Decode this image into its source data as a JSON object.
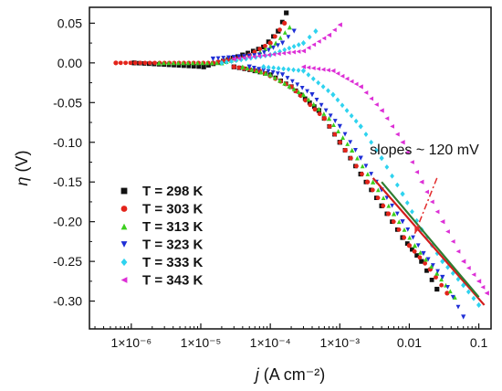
{
  "chart_data": {
    "type": "scatter",
    "title": "",
    "xlabel": "j (A cm⁻²)",
    "xlabel_var": "j",
    "xlabel_unit": " (A cm⁻²)",
    "ylabel": "η (V)",
    "ylabel_var": "η",
    "ylabel_unit": " (V)",
    "x_scale": "log",
    "xlim": [
      2.5e-07,
      0.15
    ],
    "ylim": [
      -0.335,
      0.07
    ],
    "x_ticks": [
      {
        "value": 1e-06,
        "label": "1×10⁻⁶"
      },
      {
        "value": 1e-05,
        "label": "1×10⁻⁵"
      },
      {
        "value": 0.0001,
        "label": "1×10⁻⁴"
      },
      {
        "value": 0.001,
        "label": "1×10⁻³"
      },
      {
        "value": 0.01,
        "label": "0.01"
      },
      {
        "value": 0.1,
        "label": "0.1"
      }
    ],
    "y_ticks": [
      {
        "value": 0.05,
        "label": "0.05"
      },
      {
        "value": 0.0,
        "label": "0.00"
      },
      {
        "value": -0.05,
        "label": "-0.05"
      },
      {
        "value": -0.1,
        "label": "-0.10"
      },
      {
        "value": -0.15,
        "label": "-0.15"
      },
      {
        "value": -0.2,
        "label": "-0.20"
      },
      {
        "value": -0.25,
        "label": "-0.25"
      },
      {
        "value": -0.3,
        "label": "-0.30"
      }
    ],
    "grid": false,
    "legend_position": "bottom-left",
    "series": [
      {
        "name": "T = 298 K",
        "color": "#111111",
        "marker": "square",
        "points": [
          [
            1.1e-06,
            0.0
          ],
          [
            1.1e-05,
            -0.005
          ],
          [
            4e-05,
            0.01
          ],
          [
            8e-05,
            0.02
          ],
          [
            0.00013,
            0.04
          ],
          [
            0.00017,
            0.063
          ],
          [
            3e-05,
            -0.005
          ],
          [
            6e-05,
            -0.01
          ],
          [
            0.0001,
            -0.015
          ],
          [
            0.0002,
            -0.03
          ],
          [
            0.0005,
            -0.06
          ],
          [
            0.001,
            -0.1
          ],
          [
            0.002,
            -0.14
          ],
          [
            0.004,
            -0.18
          ],
          [
            0.008,
            -0.22
          ],
          [
            0.015,
            -0.25
          ],
          [
            0.025,
            -0.285
          ]
        ]
      },
      {
        "name": "T = 303 K",
        "color": "#e3241b",
        "marker": "circle",
        "points": [
          [
            6e-07,
            0.0
          ],
          [
            1.5e-05,
            0.0
          ],
          [
            5e-05,
            0.01
          ],
          [
            0.0001,
            0.025
          ],
          [
            0.00016,
            0.05
          ],
          [
            3e-05,
            -0.005
          ],
          [
            7e-05,
            -0.01
          ],
          [
            0.0002,
            -0.03
          ],
          [
            0.0006,
            -0.07
          ],
          [
            0.0012,
            -0.11
          ],
          [
            0.0025,
            -0.15
          ],
          [
            0.005,
            -0.19
          ],
          [
            0.01,
            -0.23
          ],
          [
            0.02,
            -0.26
          ],
          [
            0.035,
            -0.29
          ]
        ]
      },
      {
        "name": "T = 313 K",
        "color": "#3ccf1e",
        "marker": "triangle-up",
        "points": [
          [
            2.5e-06,
            0.0
          ],
          [
            2e-05,
            0.0
          ],
          [
            6e-05,
            0.01
          ],
          [
            0.00012,
            0.025
          ],
          [
            0.00019,
            0.045
          ],
          [
            4e-05,
            -0.005
          ],
          [
            0.0001,
            -0.015
          ],
          [
            0.0003,
            -0.04
          ],
          [
            0.0007,
            -0.07
          ],
          [
            0.0015,
            -0.11
          ],
          [
            0.003,
            -0.15
          ],
          [
            0.006,
            -0.19
          ],
          [
            0.012,
            -0.23
          ],
          [
            0.025,
            -0.265
          ],
          [
            0.045,
            -0.295
          ]
        ]
      },
      {
        "name": "T = 323 K",
        "color": "#1f2fd6",
        "marker": "triangle-down",
        "points": [
          [
            1.5e-05,
            0.005
          ],
          [
            7e-05,
            0.01
          ],
          [
            0.00015,
            0.025
          ],
          [
            0.00022,
            0.04
          ],
          [
            5e-05,
            -0.005
          ],
          [
            0.00015,
            -0.015
          ],
          [
            0.0004,
            -0.04
          ],
          [
            0.001,
            -0.08
          ],
          [
            0.002,
            -0.12
          ],
          [
            0.004,
            -0.16
          ],
          [
            0.008,
            -0.2
          ],
          [
            0.016,
            -0.24
          ],
          [
            0.03,
            -0.27
          ],
          [
            0.06,
            -0.32
          ]
        ]
      },
      {
        "name": "T = 333 K",
        "color": "#2fd3ef",
        "marker": "diamond",
        "points": [
          [
            2e-05,
            0.0
          ],
          [
            0.0001,
            0.01
          ],
          [
            0.0003,
            0.025
          ],
          [
            0.00045,
            0.04
          ],
          [
            8e-05,
            -0.005
          ],
          [
            0.0003,
            -0.01
          ],
          [
            0.0008,
            -0.04
          ],
          [
            0.002,
            -0.08
          ],
          [
            0.004,
            -0.12
          ],
          [
            0.008,
            -0.165
          ],
          [
            0.015,
            -0.21
          ],
          [
            0.03,
            -0.25
          ],
          [
            0.06,
            -0.28
          ],
          [
            0.1,
            -0.305
          ]
        ]
      },
      {
        "name": "T = 343 K",
        "color": "#dd2fd6",
        "marker": "triangle-left",
        "points": [
          [
            3e-05,
            0.005
          ],
          [
            0.0003,
            0.015
          ],
          [
            0.0007,
            0.035
          ],
          [
            0.001,
            0.048
          ],
          [
            0.0003,
            -0.005
          ],
          [
            0.0008,
            -0.01
          ],
          [
            0.002,
            -0.03
          ],
          [
            0.004,
            -0.06
          ],
          [
            0.008,
            -0.1
          ],
          [
            0.015,
            -0.15
          ],
          [
            0.03,
            -0.2
          ],
          [
            0.06,
            -0.25
          ],
          [
            0.1,
            -0.275
          ],
          [
            0.13,
            -0.29
          ]
        ]
      }
    ],
    "fit_lines": [
      {
        "color": "#d21c1c",
        "x": [
          0.003,
          0.12
        ],
        "y": [
          -0.145,
          -0.305
        ]
      },
      {
        "color": "#2e7d32",
        "x": [
          0.004,
          0.1
        ],
        "y": [
          -0.15,
          -0.295
        ]
      }
    ],
    "annotation": {
      "text": "slopes ~ 120 mV",
      "text_x": 0.0027,
      "text_y": -0.115,
      "arrow_from": [
        0.025,
        -0.145
      ],
      "arrow_to": [
        0.012,
        -0.215
      ],
      "color": "#e32b2b"
    }
  }
}
